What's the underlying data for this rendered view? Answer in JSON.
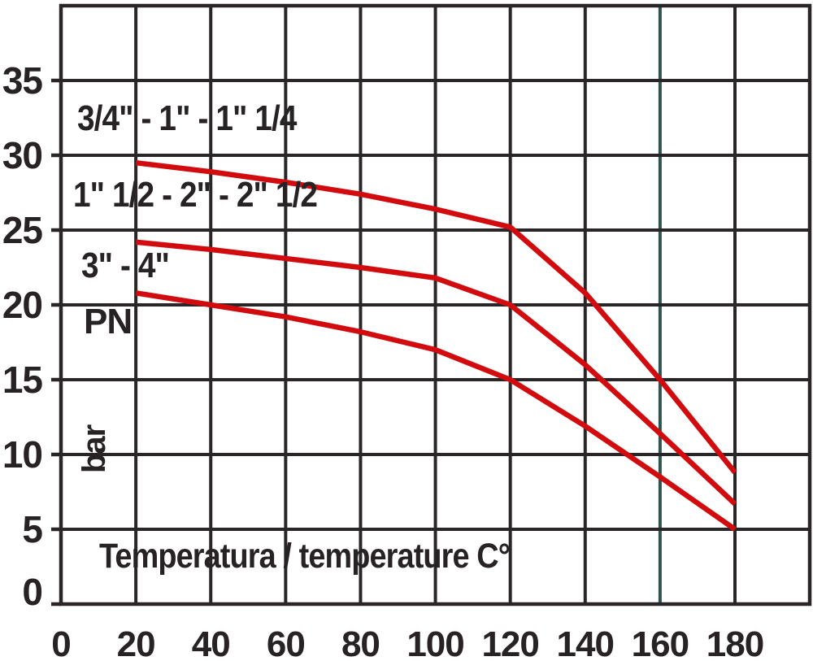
{
  "chart_data": {
    "type": "line",
    "title": "",
    "xlabel": "Temperatura / temperature C°",
    "ylabel_top": "PN",
    "ylabel_unit": "bar",
    "x_ticks": [
      0,
      20,
      40,
      60,
      80,
      100,
      120,
      140,
      160,
      180
    ],
    "y_ticks": [
      0,
      5,
      10,
      15,
      20,
      25,
      30,
      35
    ],
    "xlim": [
      0,
      200
    ],
    "ylim": [
      0,
      40
    ],
    "grid": "on",
    "legend_position": "labels-inside-plot-top-left",
    "x": [
      20,
      40,
      60,
      80,
      100,
      120,
      140,
      160,
      180
    ],
    "series": [
      {
        "name": "3/4\" - 1\" - 1\" 1/4",
        "values": [
          29.5,
          28.9,
          28.2,
          27.4,
          26.4,
          25.2,
          20.8,
          15.0,
          8.8
        ]
      },
      {
        "name": "1\" 1/2 - 2\" - 2\" 1/2",
        "values": [
          24.2,
          23.7,
          23.1,
          22.5,
          21.8,
          20.0,
          16.0,
          11.4,
          6.7
        ]
      },
      {
        "name": "3\" - 4\"",
        "values": [
          20.8,
          20.0,
          19.2,
          18.2,
          17.0,
          15.0,
          11.9,
          8.5,
          5.0
        ]
      }
    ],
    "colors": {
      "line": "#d20b0f",
      "grid": "#2a2526",
      "text": "#272223",
      "background": "#ffffff",
      "special_gridline_color": "#2f5450"
    },
    "special_gridline_x": 160
  }
}
